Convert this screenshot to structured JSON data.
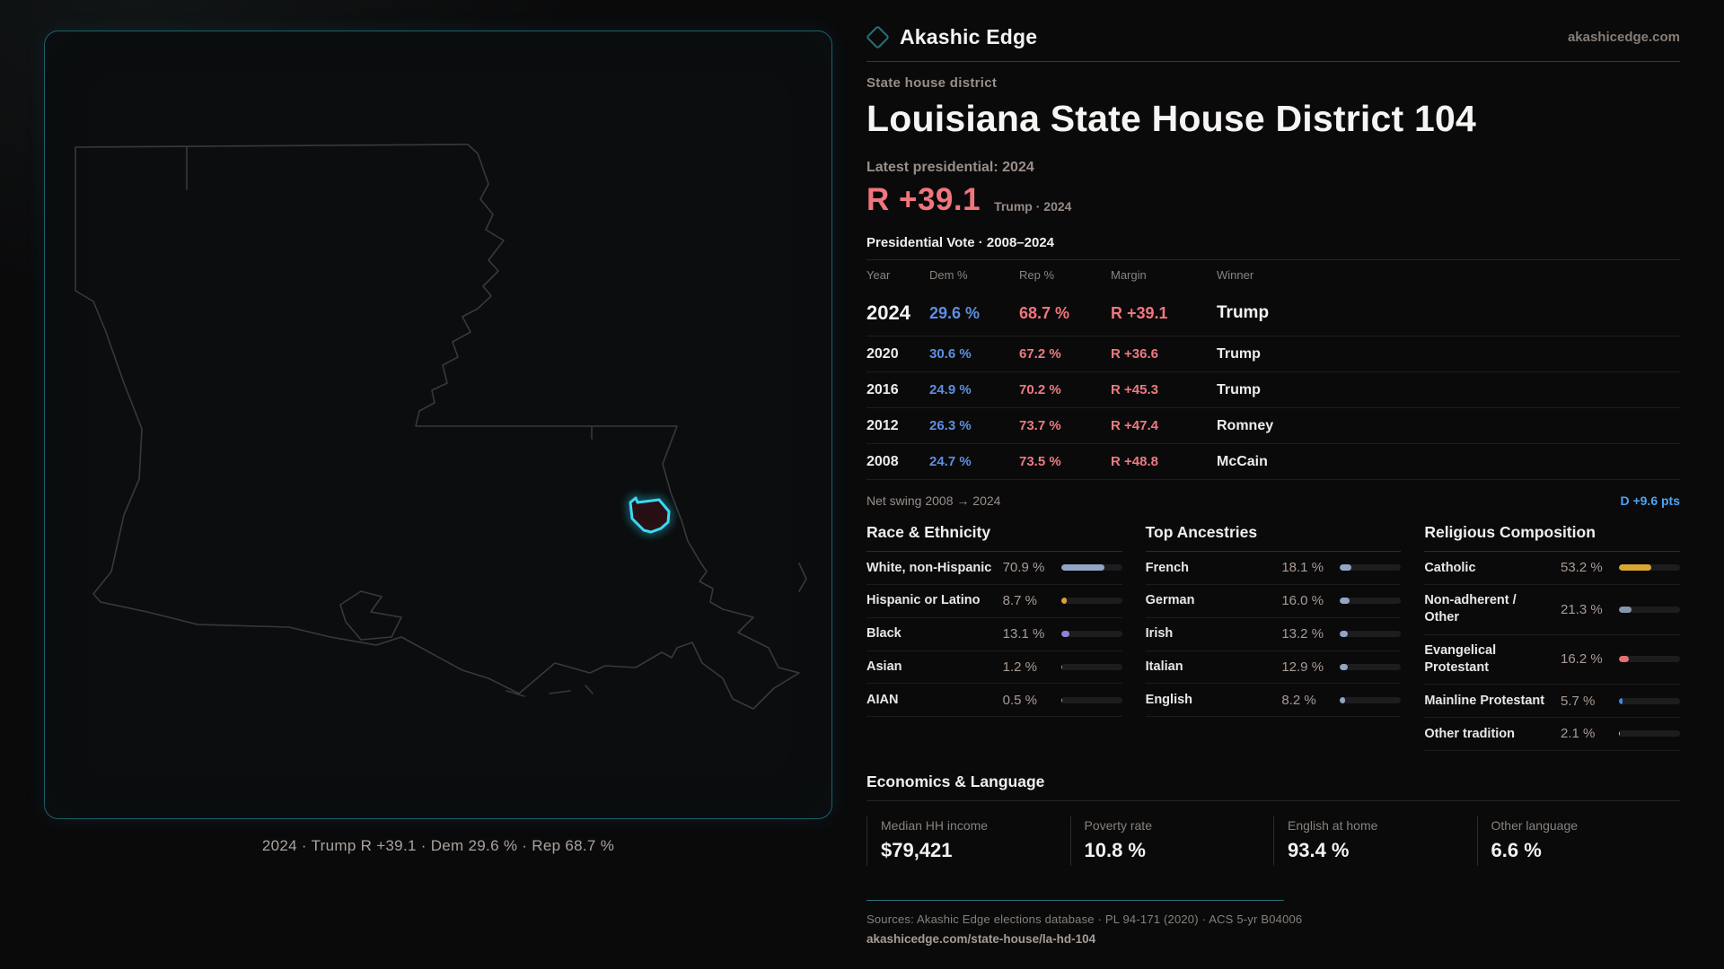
{
  "brand": {
    "name": "Akashic Edge",
    "domain": "akashicedge.com"
  },
  "page": {
    "kicker": "State house district",
    "title": "Louisiana State House District 104",
    "latest_label": "Latest presidential: 2024",
    "margin_big": "R +39.1",
    "margin_sub": "Trump · 2024",
    "table_title": "Presidential Vote · 2008–2024"
  },
  "map": {
    "caption": "2024 · Trump R +39.1 · Dem 29.6 % · Rep 68.7 %"
  },
  "vote_table": {
    "headers": {
      "year": "Year",
      "dem": "Dem %",
      "rep": "Rep %",
      "margin": "Margin",
      "winner": "Winner"
    },
    "rows": [
      {
        "year": "2024",
        "dem": "29.6 %",
        "rep": "68.7 %",
        "margin": "R +39.1",
        "winner": "Trump"
      },
      {
        "year": "2020",
        "dem": "30.6 %",
        "rep": "67.2 %",
        "margin": "R +36.6",
        "winner": "Trump"
      },
      {
        "year": "2016",
        "dem": "24.9 %",
        "rep": "70.2 %",
        "margin": "R +45.3",
        "winner": "Trump"
      },
      {
        "year": "2012",
        "dem": "26.3 %",
        "rep": "73.7 %",
        "margin": "R +47.4",
        "winner": "Romney"
      },
      {
        "year": "2008",
        "dem": "24.7 %",
        "rep": "73.5 %",
        "margin": "R +48.8",
        "winner": "McCain"
      }
    ]
  },
  "net_swing": {
    "label": "Net swing 2008 → 2024",
    "value": "D +9.6 pts"
  },
  "demographics": [
    {
      "title": "Race & Ethnicity",
      "rows": [
        {
          "label": "White, non-Hispanic",
          "value": "70.9 %",
          "pct": 70.9,
          "color": "#93a5c4"
        },
        {
          "label": "Hispanic or Latino",
          "value": "8.7 %",
          "pct": 8.7,
          "color": "#dfa03c"
        },
        {
          "label": "Black",
          "value": "13.1 %",
          "pct": 13.1,
          "color": "#9181d6"
        },
        {
          "label": "Asian",
          "value": "1.2 %",
          "pct": 1.2,
          "color": "#3ecb9a"
        },
        {
          "label": "AIAN",
          "value": "0.5 %",
          "pct": 0.5,
          "color": "#93a5c4"
        }
      ]
    },
    {
      "title": "Top Ancestries",
      "rows": [
        {
          "label": "French",
          "value": "18.1 %",
          "pct": 18.1,
          "color": "#93a5c4"
        },
        {
          "label": "German",
          "value": "16.0 %",
          "pct": 16.0,
          "color": "#93a5c4"
        },
        {
          "label": "Irish",
          "value": "13.2 %",
          "pct": 13.2,
          "color": "#93a5c4"
        },
        {
          "label": "Italian",
          "value": "12.9 %",
          "pct": 12.9,
          "color": "#93a5c4"
        },
        {
          "label": "English",
          "value": "8.2 %",
          "pct": 8.2,
          "color": "#93a5c4"
        }
      ]
    },
    {
      "title": "Religious Composition",
      "rows": [
        {
          "label": "Catholic",
          "value": "53.2 %",
          "pct": 53.2,
          "color": "#d9a832"
        },
        {
          "label": "Non-adherent / Other",
          "value": "21.3 %",
          "pct": 21.3,
          "color": "#8795ab"
        },
        {
          "label": "Evangelical Protestant",
          "value": "16.2 %",
          "pct": 16.2,
          "color": "#e57070"
        },
        {
          "label": "Mainline Protestant",
          "value": "5.7 %",
          "pct": 5.7,
          "color": "#3d87e0"
        },
        {
          "label": "Other tradition",
          "value": "2.1 %",
          "pct": 2.1,
          "color": "#c9c9c9"
        }
      ]
    }
  ],
  "economics": {
    "title": "Economics & Language",
    "stats": [
      {
        "label": "Median HH income",
        "value": "$79,421"
      },
      {
        "label": "Poverty rate",
        "value": "10.8 %"
      },
      {
        "label": "English at home",
        "value": "93.4 %"
      },
      {
        "label": "Other language",
        "value": "6.6 %"
      }
    ]
  },
  "footer": {
    "sources": "Sources: Akashic Edge elections database · PL 94-171 (2020) · ACS 5-yr B04006",
    "url": "akashicedge.com/state-house/la-hd-104"
  },
  "colors": {
    "accent_cyan": "#3bd9f4",
    "dem_blue": "#5d8fe0",
    "rep_red": "#f0767c",
    "swing_blue": "#4da3f5",
    "panel_border_teal": "#1d5f6b"
  }
}
